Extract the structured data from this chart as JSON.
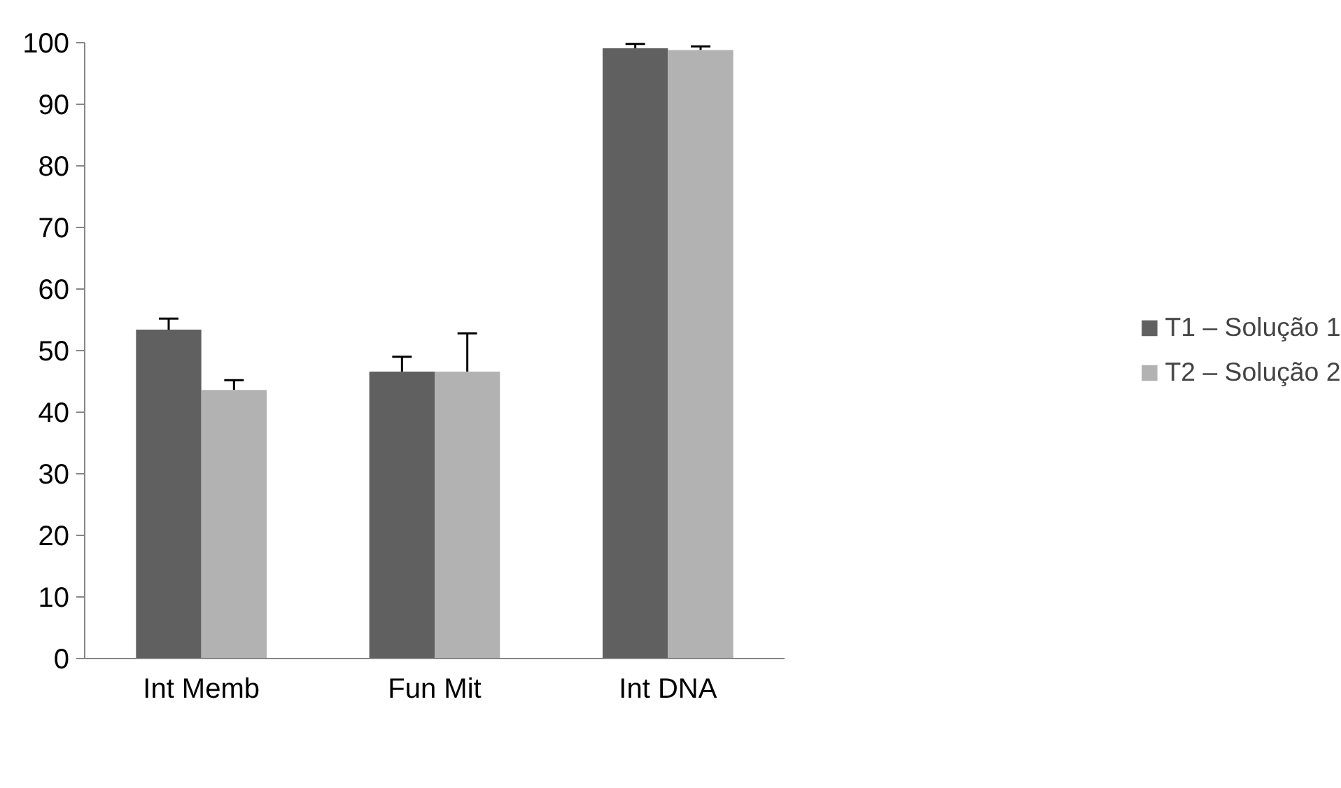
{
  "chart_data": {
    "type": "bar",
    "categories": [
      "Int Memb",
      "Fun Mit",
      "Int DNA"
    ],
    "series": [
      {
        "name": "T1 – Solução 1",
        "color": "#606060",
        "values": [
          53.4,
          46.6,
          99.1
        ],
        "errors": [
          [
            53.4,
            55.2
          ],
          [
            46.6,
            49.0
          ],
          [
            99.1,
            99.8
          ]
        ]
      },
      {
        "name": "T2 – Solução 2",
        "color": "#b2b2b2",
        "values": [
          43.6,
          46.6,
          98.8
        ],
        "errors": [
          [
            43.6,
            45.2
          ],
          [
            46.6,
            52.8
          ],
          [
            98.8,
            99.4
          ]
        ]
      }
    ],
    "ylim": [
      0,
      100
    ],
    "yticks": [
      0,
      10,
      20,
      30,
      40,
      50,
      60,
      70,
      80,
      90,
      100
    ],
    "grid": false,
    "legend": "right"
  }
}
